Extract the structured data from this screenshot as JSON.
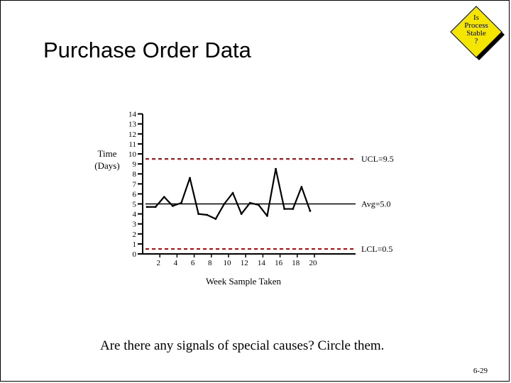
{
  "slide": {
    "title": "Purchase Order Data",
    "badge_lines": [
      "Is",
      "Process",
      "Stable",
      "?"
    ],
    "question": "Are there any signals of special causes?  Circle them.",
    "page_number": "6-29"
  },
  "chart_data": {
    "type": "line",
    "title": "",
    "xlabel": "Week Sample Taken",
    "ylabel_lines": [
      "Time",
      "(Days)"
    ],
    "ylim": [
      0,
      14
    ],
    "xlim": [
      0,
      24
    ],
    "y_ticks": [
      0,
      1,
      2,
      3,
      4,
      5,
      6,
      7,
      8,
      9,
      10,
      11,
      12,
      13,
      14
    ],
    "x_ticks": [
      2,
      4,
      6,
      8,
      10,
      12,
      14,
      16,
      18,
      20
    ],
    "grid": false,
    "series": [
      {
        "x": [
          0.5,
          1.5,
          2.5,
          3.5,
          4.5,
          5.5,
          6.5,
          7.5,
          8.5,
          9.5,
          10.5,
          11.5,
          12.5,
          13.5,
          14.5,
          15.5,
          16.5,
          17.5,
          18.5,
          19.5
        ],
        "values": [
          4.7,
          4.7,
          5.7,
          4.8,
          5.1,
          7.6,
          4.0,
          3.9,
          3.5,
          5.0,
          6.1,
          4.0,
          5.1,
          4.9,
          3.8,
          8.5,
          4.5,
          4.5,
          6.7,
          4.3
        ]
      }
    ],
    "reference_lines": [
      {
        "label": "UCL=9.5",
        "value": 9.5,
        "style": "dashed",
        "color": "#cc0000"
      },
      {
        "label": "Avg=5.0",
        "value": 5.0,
        "style": "solid",
        "color": "#000000"
      },
      {
        "label": "LCL=0.5",
        "value": 0.5,
        "style": "dashed",
        "color": "#cc0000"
      }
    ]
  }
}
